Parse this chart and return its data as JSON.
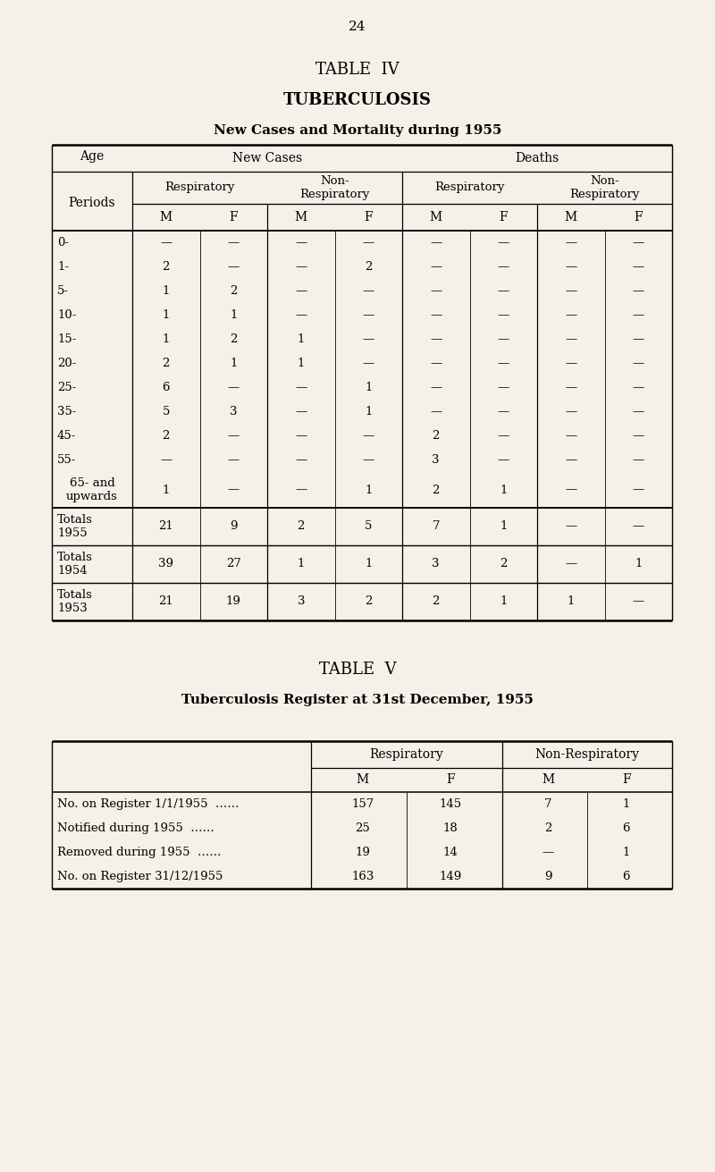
{
  "page_number": "24",
  "bg_color": "#f5f0e8",
  "table4": {
    "title1": "TABLE  IV",
    "title2": "TUBERCULOSIS",
    "title3": "New Cases and Mortality during 1955",
    "age_rows": [
      {
        "label": "0-",
        "vals": [
          "—",
          "—",
          "—",
          "—",
          "—",
          "—",
          "—",
          "—"
        ]
      },
      {
        "label": "1-",
        "vals": [
          "2",
          "—",
          "—",
          "2",
          "—",
          "—",
          "—",
          "—"
        ]
      },
      {
        "label": "5-",
        "vals": [
          "1",
          "2",
          "—",
          "—",
          "—",
          "—",
          "—",
          "—"
        ]
      },
      {
        "label": "10-",
        "vals": [
          "1",
          "1",
          "—",
          "—",
          "—",
          "—",
          "—",
          "—"
        ]
      },
      {
        "label": "15-",
        "vals": [
          "1",
          "2",
          "1",
          "—",
          "—",
          "—",
          "—",
          "—"
        ]
      },
      {
        "label": "20-",
        "vals": [
          "2",
          "1",
          "1",
          "—",
          "—",
          "—",
          "—",
          "—"
        ]
      },
      {
        "label": "25-",
        "vals": [
          "6",
          "—",
          "—",
          "1",
          "—",
          "—",
          "—",
          "—"
        ]
      },
      {
        "label": "35-",
        "vals": [
          "5",
          "3",
          "—",
          "1",
          "—",
          "—",
          "—",
          "—"
        ]
      },
      {
        "label": "45-",
        "vals": [
          "2",
          "—",
          "—",
          "—",
          "2",
          "—",
          "—",
          "—"
        ]
      },
      {
        "label": "55-",
        "vals": [
          "—",
          "—",
          "—",
          "—",
          "3",
          "—",
          "—",
          "—"
        ]
      },
      {
        "label": "65- and\nupwards",
        "vals": [
          "1",
          "—",
          "—",
          "1",
          "2",
          "1",
          "—",
          "—"
        ]
      }
    ],
    "total_rows": [
      {
        "label": "Totals\n1955",
        "vals": [
          "21",
          "9",
          "2",
          "5",
          "7",
          "1",
          "—",
          "—"
        ]
      },
      {
        "label": "Totals\n1954",
        "vals": [
          "39",
          "27",
          "1",
          "1",
          "3",
          "2",
          "—",
          "1"
        ]
      },
      {
        "label": "Totals\n1953",
        "vals": [
          "21",
          "19",
          "3",
          "2",
          "2",
          "1",
          "1",
          "—"
        ]
      }
    ]
  },
  "table5": {
    "title1": "TABLE  V",
    "title2": "Tuberculosis Register at 31st December, 1955",
    "rows": [
      {
        "label": "No. on Register 1/1/1955",
        "dots": true,
        "vals": [
          "157",
          "145",
          "7",
          "1"
        ]
      },
      {
        "label": "Notified during 1955",
        "dots": true,
        "vals": [
          "25",
          "18",
          "2",
          "6"
        ]
      },
      {
        "label": "Removed during 1955",
        "dots": true,
        "vals": [
          "19",
          "14",
          "—",
          "1"
        ]
      },
      {
        "label": "No. on Register 31/12/1955",
        "dots": false,
        "vals": [
          "163",
          "149",
          "9",
          "6"
        ]
      }
    ]
  }
}
